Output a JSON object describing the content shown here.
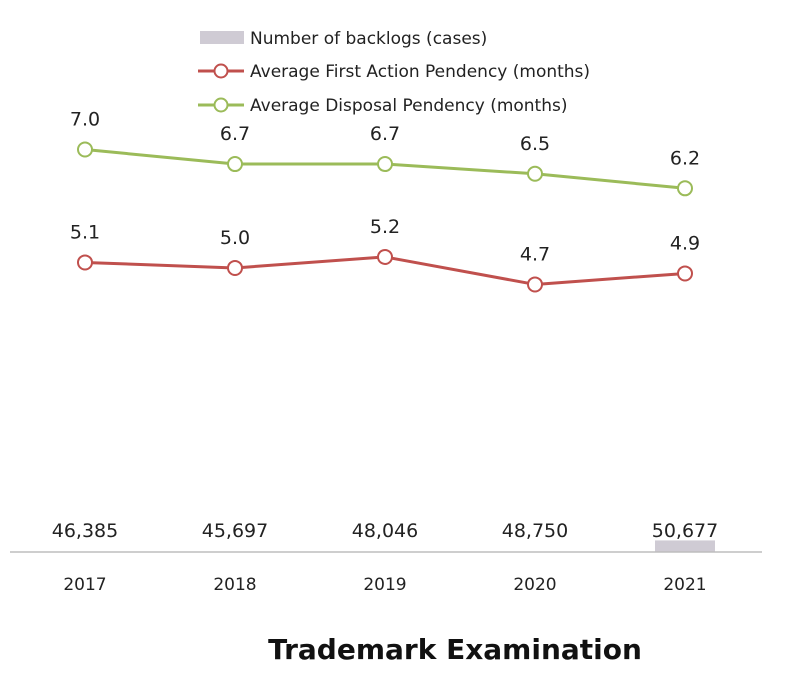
{
  "chart_data": {
    "type": "bar",
    "title": "Trademark Examination",
    "categories": [
      "2017",
      "2018",
      "2019",
      "2020",
      "2021"
    ],
    "series": [
      {
        "name": "Number of backlogs (cases)",
        "type": "bar",
        "values": [
          46385,
          45697,
          48046,
          48750,
          50677
        ],
        "labels": [
          "46,385",
          "45,697",
          "48,046",
          "48,750",
          "50,677"
        ],
        "color": "#cfcbd4"
      },
      {
        "name": "Average First Action Pendency (months)",
        "type": "line",
        "values": [
          5.1,
          5.0,
          5.2,
          4.7,
          4.9
        ],
        "labels": [
          "5.1",
          "5.0",
          "5.2",
          "4.7",
          "4.9"
        ],
        "color": "#c0504d"
      },
      {
        "name": "Average Disposal Pendency (months)",
        "type": "line",
        "values": [
          7.0,
          6.7,
          6.7,
          6.5,
          6.2
        ],
        "labels": [
          "7.0",
          "6.7",
          "6.7",
          "6.5",
          "6.2"
        ],
        "color": "#9bbb59"
      }
    ],
    "legend_position": "top",
    "grid": false
  }
}
